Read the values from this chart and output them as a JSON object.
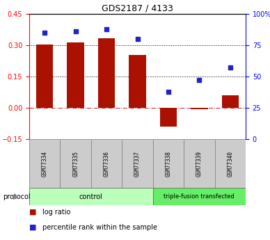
{
  "title": "GDS2187 / 4133",
  "samples": [
    "GSM77334",
    "GSM77335",
    "GSM77336",
    "GSM77337",
    "GSM77338",
    "GSM77339",
    "GSM77340"
  ],
  "log_ratio": [
    0.305,
    0.315,
    0.335,
    0.255,
    -0.09,
    -0.005,
    0.06
  ],
  "percentile_rank": [
    85,
    86,
    88,
    80,
    38,
    47,
    57
  ],
  "ylim_left": [
    -0.15,
    0.45
  ],
  "ylim_right": [
    0,
    100
  ],
  "yticks_left": [
    -0.15,
    0.0,
    0.15,
    0.3,
    0.45
  ],
  "yticks_right": [
    0,
    25,
    50,
    75,
    100
  ],
  "hlines_dotted": [
    0.15,
    0.3
  ],
  "hline_dashdot": 0.0,
  "bar_color": "#AA1100",
  "dot_color": "#2222CC",
  "zero_line_color": "#BB2222",
  "bg_color": "#FFFFFF",
  "protocol_groups": [
    {
      "label": "control",
      "start": 0,
      "end": 3,
      "color": "#BBFFBB"
    },
    {
      "label": "triple-fusion transfected",
      "start": 4,
      "end": 6,
      "color": "#66EE66"
    }
  ],
  "legend_items": [
    {
      "color": "#AA1100",
      "label": "log ratio"
    },
    {
      "color": "#2222CC",
      "label": "percentile rank within the sample"
    }
  ],
  "protocol_label": "protocol"
}
